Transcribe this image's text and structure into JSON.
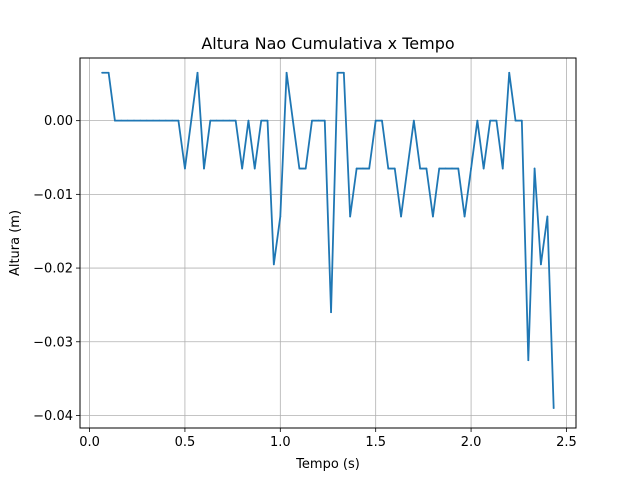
{
  "chart_data": {
    "type": "line",
    "title": "Altura Nao Cumulativa x Tempo",
    "xlabel": "Tempo (s)",
    "ylabel": "Altura (m)",
    "xlim": [
      -0.05,
      2.55
    ],
    "ylim": [
      -0.0417,
      0.0085
    ],
    "grid": true,
    "line_color": "#1f77b4",
    "x_ticks": [
      0.0,
      0.5,
      1.0,
      1.5,
      2.0,
      2.5
    ],
    "x_tick_labels": [
      "0.0",
      "0.5",
      "1.0",
      "1.5",
      "2.0",
      "2.5"
    ],
    "y_ticks": [
      0.0,
      -0.01,
      -0.02,
      -0.03,
      -0.04
    ],
    "y_tick_labels": [
      "0.00",
      "−0.01",
      "−0.02",
      "−0.03",
      "−0.04"
    ],
    "series": [
      {
        "x": [
          0.066,
          0.1,
          0.133,
          0.166,
          0.2,
          0.233,
          0.266,
          0.3,
          0.333,
          0.366,
          0.4,
          0.433,
          0.466,
          0.5,
          0.533,
          0.566,
          0.6,
          0.633,
          0.666,
          0.7,
          0.733,
          0.766,
          0.8,
          0.833,
          0.866,
          0.9,
          0.933,
          0.966,
          1.0,
          1.033,
          1.066,
          1.1,
          1.133,
          1.166,
          1.2,
          1.233,
          1.266,
          1.3,
          1.333,
          1.366,
          1.4,
          1.433,
          1.466,
          1.5,
          1.533,
          1.566,
          1.6,
          1.633,
          1.666,
          1.7,
          1.733,
          1.766,
          1.8,
          1.833,
          1.866,
          1.9,
          1.933,
          1.966,
          2.0,
          2.033,
          2.066,
          2.1,
          2.133,
          2.166,
          2.2,
          2.233,
          2.266,
          2.3,
          2.333,
          2.366,
          2.4,
          2.433
        ],
        "y": [
          0.0065,
          0.0065,
          0.0,
          0.0,
          0.0,
          0.0,
          0.0,
          0.0,
          0.0,
          0.0,
          0.0,
          0.0,
          0.0,
          -0.0065,
          0.0,
          0.0065,
          -0.0065,
          0.0,
          0.0,
          0.0,
          0.0,
          0.0,
          -0.0065,
          0.0,
          -0.0065,
          0.0,
          0.0,
          -0.0195,
          -0.013,
          0.0065,
          0.0,
          -0.0065,
          -0.0065,
          0.0,
          0.0,
          0.0,
          -0.026,
          0.0065,
          0.0065,
          -0.013,
          -0.0065,
          -0.0065,
          -0.0065,
          0.0,
          0.0,
          -0.0065,
          -0.0065,
          -0.013,
          -0.0065,
          0.0,
          -0.0065,
          -0.0065,
          -0.013,
          -0.0065,
          -0.0065,
          -0.0065,
          -0.0065,
          -0.013,
          -0.0065,
          0.0,
          -0.0065,
          0.0,
          0.0,
          -0.0065,
          0.0065,
          0.0,
          0.0,
          -0.0325,
          -0.0065,
          -0.0195,
          -0.013,
          -0.039
        ]
      }
    ]
  }
}
